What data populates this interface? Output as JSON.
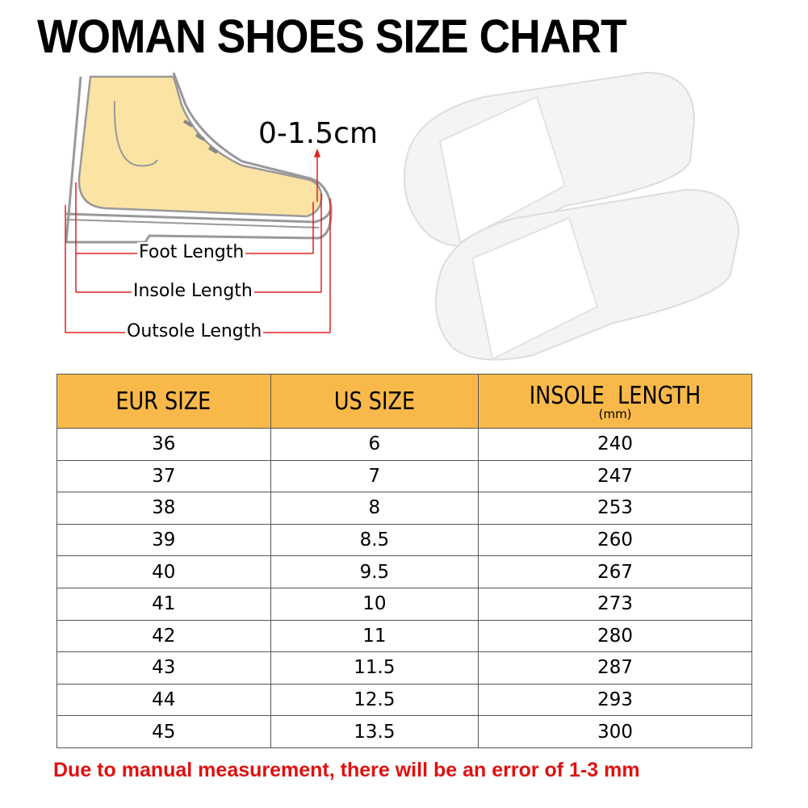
{
  "title": "WOMAN SHOES SIZE CHART",
  "diagram": {
    "gap_label": "0-1.5cm",
    "foot_length": "Foot Length",
    "insole_length": "Insole Length",
    "outsole_length": "Outsole Length",
    "colors": {
      "skin": "#fbe3a4",
      "arrow": "#e02020",
      "header": "#f9b94a"
    }
  },
  "table": {
    "headers": [
      "EUR SIZE",
      "US SIZE",
      "INSOLE  LENGTH"
    ],
    "header_unit": "(mm)",
    "rows": [
      [
        "36",
        "6",
        "240"
      ],
      [
        "37",
        "7",
        "247"
      ],
      [
        "38",
        "8",
        "253"
      ],
      [
        "39",
        "8.5",
        "260"
      ],
      [
        "40",
        "9.5",
        "267"
      ],
      [
        "41",
        "10",
        "273"
      ],
      [
        "42",
        "11",
        "280"
      ],
      [
        "43",
        "11.5",
        "287"
      ],
      [
        "44",
        "12.5",
        "293"
      ],
      [
        "45",
        "13.5",
        "300"
      ]
    ]
  },
  "note": "Due to manual measurement, there will be an error of 1-3  mm"
}
